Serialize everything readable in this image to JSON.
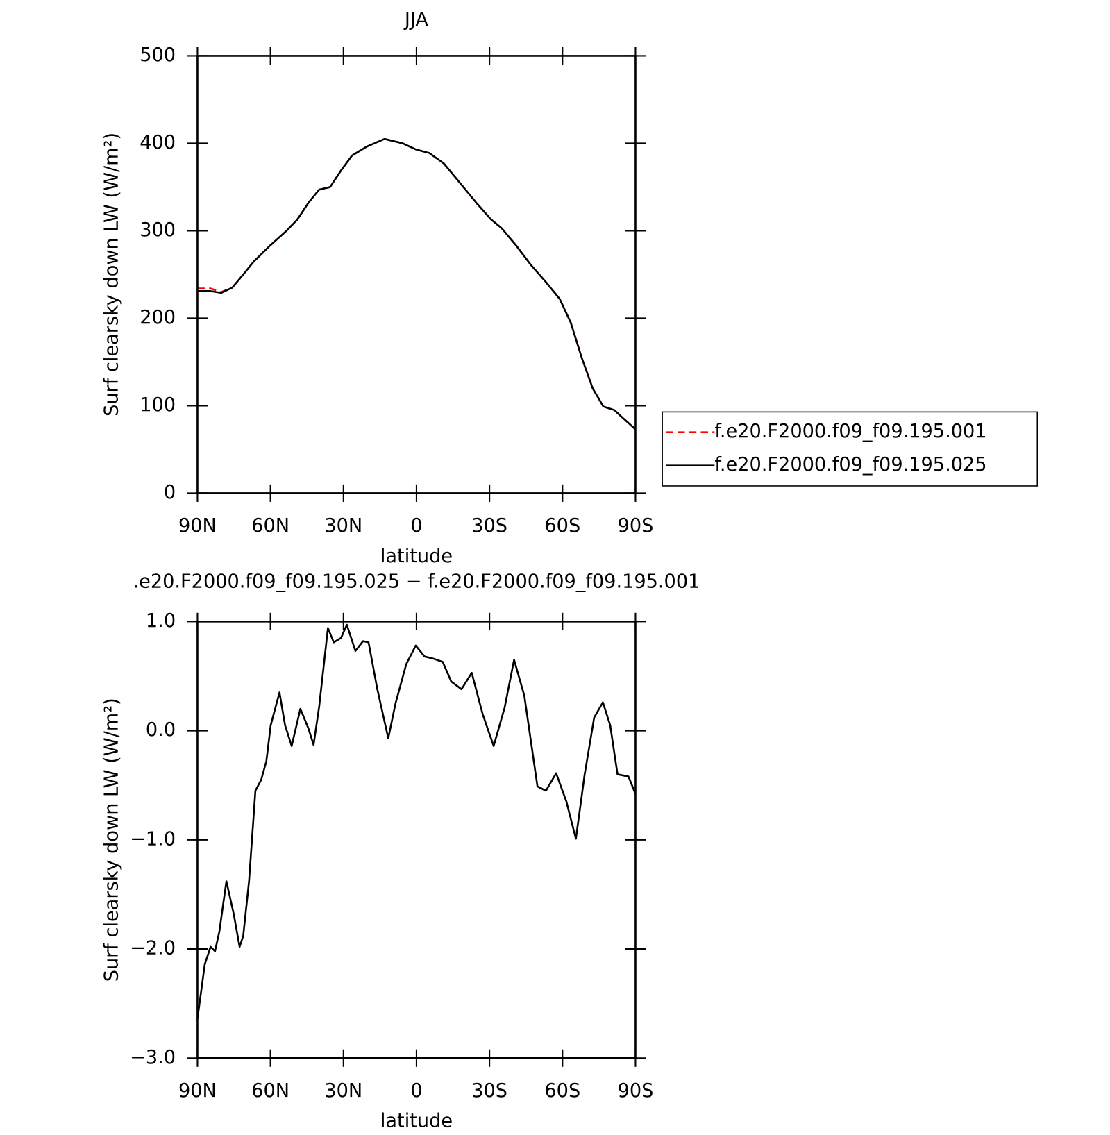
{
  "chart_data": [
    {
      "type": "line",
      "title": "JJA",
      "xlabel": "latitude",
      "ylabel": "Surf clearsky down LW (W/m²)",
      "x": [
        90,
        84.6,
        80.2,
        75.7,
        71.2,
        66.8,
        60.2,
        53.4,
        48.9,
        44.4,
        40,
        35.5,
        31,
        26.5,
        20.6,
        13.1,
        5.7,
        0.3,
        -5.2,
        -11.2,
        -17.2,
        -24.6,
        -30.6,
        -35,
        -41,
        -47,
        -53,
        -58.9,
        -63.4,
        -67.9,
        -72.4,
        -76.8,
        -81.3,
        -85.2,
        -90
      ],
      "series": [
        {
          "name": "f.e20.F2000.f09_f09.195.001",
          "color": "#ff0000",
          "line_style": "dashed",
          "values": [
            234,
            234,
            230,
            235,
            250,
            265,
            283,
            300,
            313,
            332,
            347,
            350,
            369,
            386,
            396,
            405,
            400,
            393,
            389,
            377,
            357,
            332,
            313,
            303,
            283,
            261,
            242,
            222,
            195,
            155,
            120,
            99,
            95,
            85,
            73
          ]
        },
        {
          "name": "f.e20.F2000.f09_f09.195.025",
          "color": "#000000",
          "line_style": "solid",
          "values": [
            231,
            231,
            229,
            235,
            250,
            265,
            283,
            300,
            313,
            332,
            347,
            350,
            369,
            386,
            396,
            405,
            400,
            393,
            389,
            377,
            357,
            332,
            313,
            303,
            283,
            261,
            242,
            222,
            195,
            155,
            120,
            99,
            95,
            85,
            73
          ]
        }
      ],
      "xlim": [
        90,
        -90
      ],
      "xticks": [
        {
          "value": 90,
          "label": "90N"
        },
        {
          "value": 60,
          "label": "60N"
        },
        {
          "value": 30,
          "label": "30N"
        },
        0,
        {
          "value": -30,
          "label": "30S"
        },
        {
          "value": -60,
          "label": "60S"
        },
        {
          "value": -90,
          "label": "90S"
        }
      ],
      "ylim": [
        0,
        500
      ],
      "yticks": [
        0,
        100,
        200,
        300,
        400,
        500
      ]
    },
    {
      "type": "line",
      "title": ".e20.F2000.f09_f09.195.025 − f.e20.F2000.f09_f09.195.001",
      "xlabel": "latitude",
      "ylabel": "Surf clearsky down LW (W/m²)",
      "x": [
        90,
        87,
        84.6,
        82.8,
        81,
        78.1,
        75.1,
        72.7,
        71.2,
        68.8,
        66.2,
        63.8,
        61.7,
        59.9,
        56.3,
        54,
        51.3,
        47.7,
        44.4,
        42.3,
        40,
        36.4,
        34,
        31,
        28.6,
        25.1,
        22,
        19.7,
        16.1,
        11.6,
        8.6,
        4.2,
        0.3,
        -3.3,
        -6.9,
        -10.8,
        -14.3,
        -18.5,
        -22.7,
        -27.2,
        -31.7,
        -36.2,
        -40.1,
        -44.3,
        -49.7,
        -53.2,
        -57.4,
        -61.6,
        -65.5,
        -69.1,
        -73,
        -76.6,
        -79.6,
        -82.6,
        -87.1,
        -90
      ],
      "series": [
        {
          "color": "#000000",
          "line_style": "solid",
          "values": [
            -2.64,
            -2.14,
            -1.98,
            -2.02,
            -1.84,
            -1.38,
            -1.68,
            -1.98,
            -1.88,
            -1.38,
            -0.55,
            -0.45,
            -0.28,
            0.05,
            0.35,
            0.05,
            -0.14,
            0.2,
            0.02,
            -0.13,
            0.22,
            0.94,
            0.81,
            0.85,
            0.97,
            0.73,
            0.82,
            0.81,
            0.38,
            -0.07,
            0.25,
            0.61,
            0.78,
            0.68,
            0.66,
            0.63,
            0.45,
            0.38,
            0.53,
            0.15,
            -0.14,
            0.21,
            0.65,
            0.32,
            -0.51,
            -0.55,
            -0.39,
            -0.65,
            -0.99,
            -0.4,
            0.12,
            0.26,
            0.05,
            -0.4,
            -0.42,
            -0.58
          ]
        }
      ],
      "xlim": [
        90,
        -90
      ],
      "xticks": [
        {
          "value": 90,
          "label": "90N"
        },
        {
          "value": 60,
          "label": "60N"
        },
        {
          "value": 30,
          "label": "30N"
        },
        0,
        {
          "value": -30,
          "label": "30S"
        },
        {
          "value": -60,
          "label": "60S"
        },
        {
          "value": -90,
          "label": "90S"
        }
      ],
      "ylim": [
        -3,
        1
      ],
      "yticks": [
        {
          "value": -3,
          "label": "−3.0"
        },
        {
          "value": -2,
          "label": "−2.0"
        },
        {
          "value": -1,
          "label": "−1.0"
        },
        {
          "value": 0,
          "label": "0.0"
        },
        {
          "value": 1,
          "label": "1.0"
        }
      ]
    }
  ]
}
